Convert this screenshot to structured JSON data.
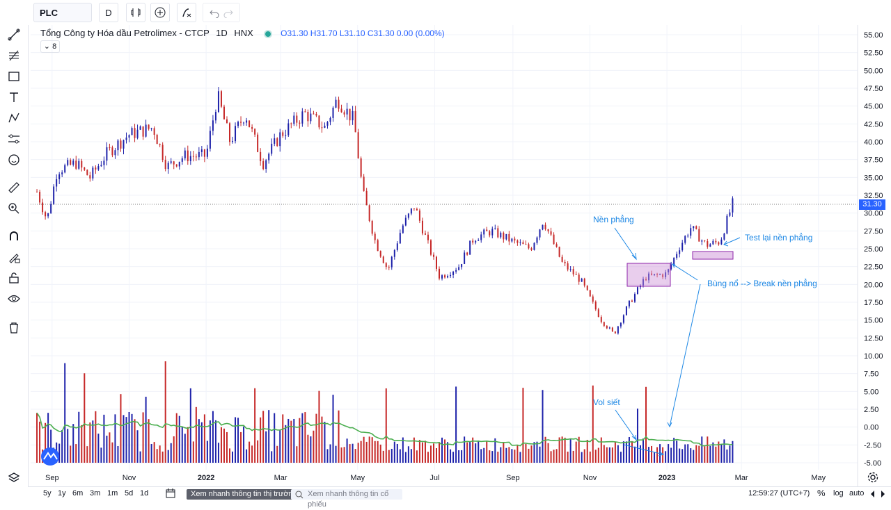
{
  "toolbar": {
    "symbol": "PLC",
    "interval": "D"
  },
  "legend": {
    "name": "Tổng Công ty Hóa dầu Petrolimex - CTCP",
    "interval": "1D",
    "exchange": "HNX",
    "ohlc": "O31.30 H31.70 L31.10 C31.30 0.00 (0.00%)",
    "collapse_count": "8"
  },
  "price_axis": {
    "ticks": [
      "55.00",
      "52.50",
      "50.00",
      "47.50",
      "45.00",
      "42.50",
      "40.00",
      "37.50",
      "35.00",
      "32.50",
      "30.00",
      "27.50",
      "25.00",
      "22.50",
      "20.00",
      "17.50",
      "15.00",
      "12.50",
      "10.00",
      "7.50",
      "5.00",
      "2.50",
      "0.00",
      "-2.50",
      "-5.00"
    ],
    "last_price": "31.30"
  },
  "time_axis": {
    "labels": [
      "Sep",
      "Nov",
      "2022",
      "Mar",
      "May",
      "Jul",
      "Sep",
      "Nov",
      "2023",
      "Mar",
      "May"
    ]
  },
  "annotations": {
    "base": "Nền phẳng",
    "retest": "Test lại nền phẳng",
    "breakout": "Bùng nổ --> Break nền phẳng",
    "vol": "Vol siết"
  },
  "bottom": {
    "ranges": [
      "5y",
      "1y",
      "6m",
      "3m",
      "1m",
      "5d",
      "1d"
    ],
    "market_btn": "Xem nhanh thông tin thị trường",
    "stock_search": "Xem nhanh thông tin cổ phiếu",
    "clock": "12:59:27 (UTC+7)",
    "pct": "%",
    "log": "log",
    "auto": "auto"
  },
  "colors": {
    "up": "#1e22aa",
    "down": "#c62828",
    "ma": "#4caf50",
    "accent": "#2962ff",
    "annotation": "#1e88e5",
    "box": "#ce93d8"
  },
  "chart_data": {
    "type": "candlestick",
    "symbol": "PLC",
    "interval": "1D",
    "last": 31.3,
    "y_range": [
      -5,
      55
    ],
    "price_path": [
      {
        "date": "2021-08-20",
        "close": 33.0
      },
      {
        "date": "2021-08-28",
        "close": 29.0
      },
      {
        "date": "2021-09-05",
        "close": 36.0
      },
      {
        "date": "2021-09-20",
        "close": 37.0
      },
      {
        "date": "2021-10-01",
        "close": 35.0
      },
      {
        "date": "2021-10-15",
        "close": 38.5
      },
      {
        "date": "2021-11-01",
        "close": 41.0
      },
      {
        "date": "2021-11-20",
        "close": 42.0
      },
      {
        "date": "2021-12-01",
        "close": 36.5
      },
      {
        "date": "2021-12-15",
        "close": 38.0
      },
      {
        "date": "2022-01-01",
        "close": 38.0
      },
      {
        "date": "2022-01-10",
        "close": 46.5
      },
      {
        "date": "2022-01-20",
        "close": 40.0
      },
      {
        "date": "2022-02-01",
        "close": 44.0
      },
      {
        "date": "2022-02-15",
        "close": 37.0
      },
      {
        "date": "2022-03-01",
        "close": 41.0
      },
      {
        "date": "2022-03-20",
        "close": 44.0
      },
      {
        "date": "2022-04-05",
        "close": 42.0
      },
      {
        "date": "2022-04-15",
        "close": 46.0
      },
      {
        "date": "2022-04-28",
        "close": 43.0
      },
      {
        "date": "2022-05-05",
        "close": 33.0
      },
      {
        "date": "2022-05-15",
        "close": 26.0
      },
      {
        "date": "2022-05-25",
        "close": 22.0
      },
      {
        "date": "2022-06-05",
        "close": 28.0
      },
      {
        "date": "2022-06-15",
        "close": 31.0
      },
      {
        "date": "2022-06-25",
        "close": 26.0
      },
      {
        "date": "2022-07-05",
        "close": 21.0
      },
      {
        "date": "2022-07-20",
        "close": 22.5
      },
      {
        "date": "2022-08-01",
        "close": 26.5
      },
      {
        "date": "2022-08-15",
        "close": 27.5
      },
      {
        "date": "2022-09-01",
        "close": 26.0
      },
      {
        "date": "2022-09-15",
        "close": 25.0
      },
      {
        "date": "2022-09-25",
        "close": 29.0
      },
      {
        "date": "2022-10-10",
        "close": 23.0
      },
      {
        "date": "2022-10-25",
        "close": 20.5
      },
      {
        "date": "2022-11-10",
        "close": 15.0
      },
      {
        "date": "2022-11-20",
        "close": 13.0
      },
      {
        "date": "2022-12-01",
        "close": 17.0
      },
      {
        "date": "2022-12-15",
        "close": 21.0
      },
      {
        "date": "2023-01-01",
        "close": 21.5
      },
      {
        "date": "2023-01-10",
        "close": 25.0
      },
      {
        "date": "2023-01-20",
        "close": 28.0
      },
      {
        "date": "2023-02-01",
        "close": 25.5
      },
      {
        "date": "2023-02-12",
        "close": 26.0
      },
      {
        "date": "2023-02-22",
        "close": 31.3
      }
    ],
    "volume_scale": [
      -5,
      10
    ]
  }
}
